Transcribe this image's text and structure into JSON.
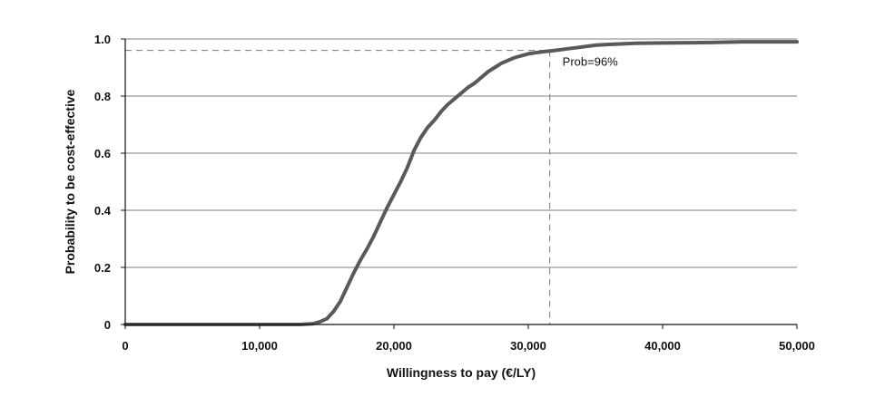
{
  "chart_data": {
    "type": "line",
    "title": "",
    "xlabel": "Willingness to pay (€/LY)",
    "ylabel": "Probability to be cost-effective",
    "xlim": [
      0,
      50000
    ],
    "ylim": [
      0,
      1.0
    ],
    "x_ticks": [
      0,
      10000,
      20000,
      30000,
      40000,
      50000
    ],
    "x_tick_labels": [
      "0",
      "10,000",
      "20,000",
      "30,000",
      "40,000",
      "50,000"
    ],
    "y_ticks": [
      0,
      0.2,
      0.4,
      0.6,
      0.8,
      1.0
    ],
    "y_tick_labels": [
      "0",
      "0.2",
      "0.4",
      "0.6",
      "0.8",
      "1.0"
    ],
    "grid": "horizontal",
    "series": [
      {
        "x": [
          0,
          5000,
          10000,
          12000,
          13000,
          14000,
          14500,
          15000,
          15500,
          16000,
          16500,
          17000,
          17500,
          18000,
          18500,
          19000,
          19500,
          20000,
          20500,
          21000,
          21500,
          22000,
          22500,
          23000,
          23500,
          24000,
          24500,
          25000,
          25500,
          26000,
          26500,
          27000,
          27500,
          28000,
          28500,
          29000,
          30000,
          31000,
          32000,
          33000,
          34000,
          35000,
          36000,
          38000,
          40000,
          42000,
          44000,
          46000,
          48000,
          50000
        ],
        "y": [
          0,
          0,
          0,
          0,
          0,
          0.003,
          0.01,
          0.02,
          0.045,
          0.08,
          0.13,
          0.18,
          0.225,
          0.265,
          0.31,
          0.36,
          0.41,
          0.455,
          0.5,
          0.55,
          0.61,
          0.655,
          0.69,
          0.715,
          0.745,
          0.77,
          0.79,
          0.81,
          0.83,
          0.845,
          0.865,
          0.885,
          0.9,
          0.915,
          0.925,
          0.935,
          0.948,
          0.955,
          0.96,
          0.966,
          0.972,
          0.978,
          0.981,
          0.985,
          0.986,
          0.987,
          0.988,
          0.99,
          0.99,
          0.99
        ],
        "color": "#595959"
      }
    ],
    "reference": {
      "x": 31600,
      "y": 0.96,
      "label": "Prob=96%",
      "style": "dashed",
      "color": "#777777"
    }
  }
}
